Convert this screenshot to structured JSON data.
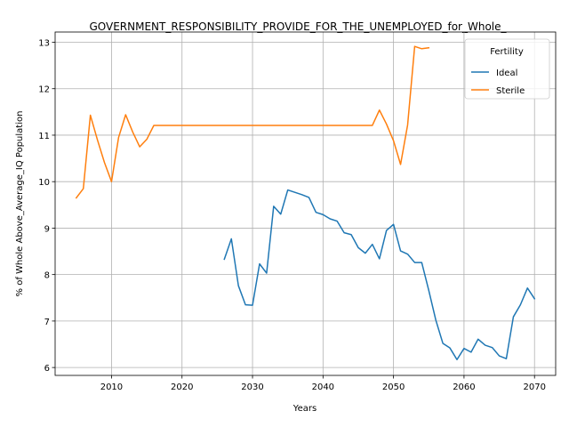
{
  "chart_data": {
    "type": "line",
    "title": "GOVERNMENT_RESPONSIBILITY_PROVIDE_FOR_THE_UNEMPLOYED_for_Whole_",
    "xlabel": "Years",
    "ylabel": "% of Whole Above_Average_IQ Population",
    "xlim": [
      2002,
      2073
    ],
    "ylim": [
      5.83,
      13.22
    ],
    "xticks": [
      2010,
      2020,
      2030,
      2040,
      2050,
      2060,
      2070
    ],
    "yticks": [
      6,
      7,
      8,
      9,
      10,
      11,
      12,
      13
    ],
    "grid": true,
    "legend": {
      "title": "Fertility",
      "position": "top-right"
    },
    "colors": {
      "Ideal": "#1f77b4",
      "Sterile": "#ff7f0e"
    },
    "series": [
      {
        "name": "Ideal",
        "x": [
          2026,
          2027,
          2028,
          2029,
          2030,
          2031,
          2032,
          2033,
          2034,
          2035,
          2036,
          2037,
          2038,
          2039,
          2040,
          2041,
          2042,
          2043,
          2044,
          2045,
          2046,
          2047,
          2048,
          2049,
          2050,
          2051,
          2052,
          2053,
          2054,
          2055,
          2056,
          2057,
          2058,
          2059,
          2060,
          2061,
          2062,
          2063,
          2064,
          2065,
          2066,
          2067,
          2068,
          2069,
          2070
        ],
        "values": [
          8.33,
          8.77,
          7.76,
          7.35,
          7.34,
          8.23,
          8.03,
          9.47,
          9.3,
          9.82,
          9.77,
          9.72,
          9.66,
          9.34,
          9.29,
          9.2,
          9.15,
          8.9,
          8.86,
          8.58,
          8.46,
          8.65,
          8.34,
          8.95,
          9.08,
          8.51,
          8.44,
          8.26,
          8.26,
          7.66,
          7.02,
          6.52,
          6.42,
          6.17,
          6.41,
          6.33,
          6.61,
          6.48,
          6.43,
          6.25,
          6.19,
          7.09,
          7.35,
          7.71,
          7.48
        ]
      },
      {
        "name": "Sterile",
        "x": [
          2005,
          2006,
          2007,
          2008,
          2009,
          2010,
          2011,
          2012,
          2013,
          2014,
          2015,
          2016,
          2017,
          2018,
          2019,
          2020,
          2025,
          2030,
          2035,
          2040,
          2045,
          2046,
          2047,
          2048,
          2049,
          2050,
          2051,
          2052,
          2053,
          2054,
          2055
        ],
        "values": [
          9.65,
          9.85,
          11.43,
          10.9,
          10.41,
          10.0,
          10.95,
          11.44,
          11.07,
          10.75,
          10.91,
          11.21,
          11.21,
          11.21,
          11.21,
          11.21,
          11.21,
          11.21,
          11.21,
          11.21,
          11.21,
          11.21,
          11.21,
          11.54,
          11.24,
          10.88,
          10.37,
          11.22,
          12.91,
          12.86,
          12.88
        ]
      }
    ]
  }
}
